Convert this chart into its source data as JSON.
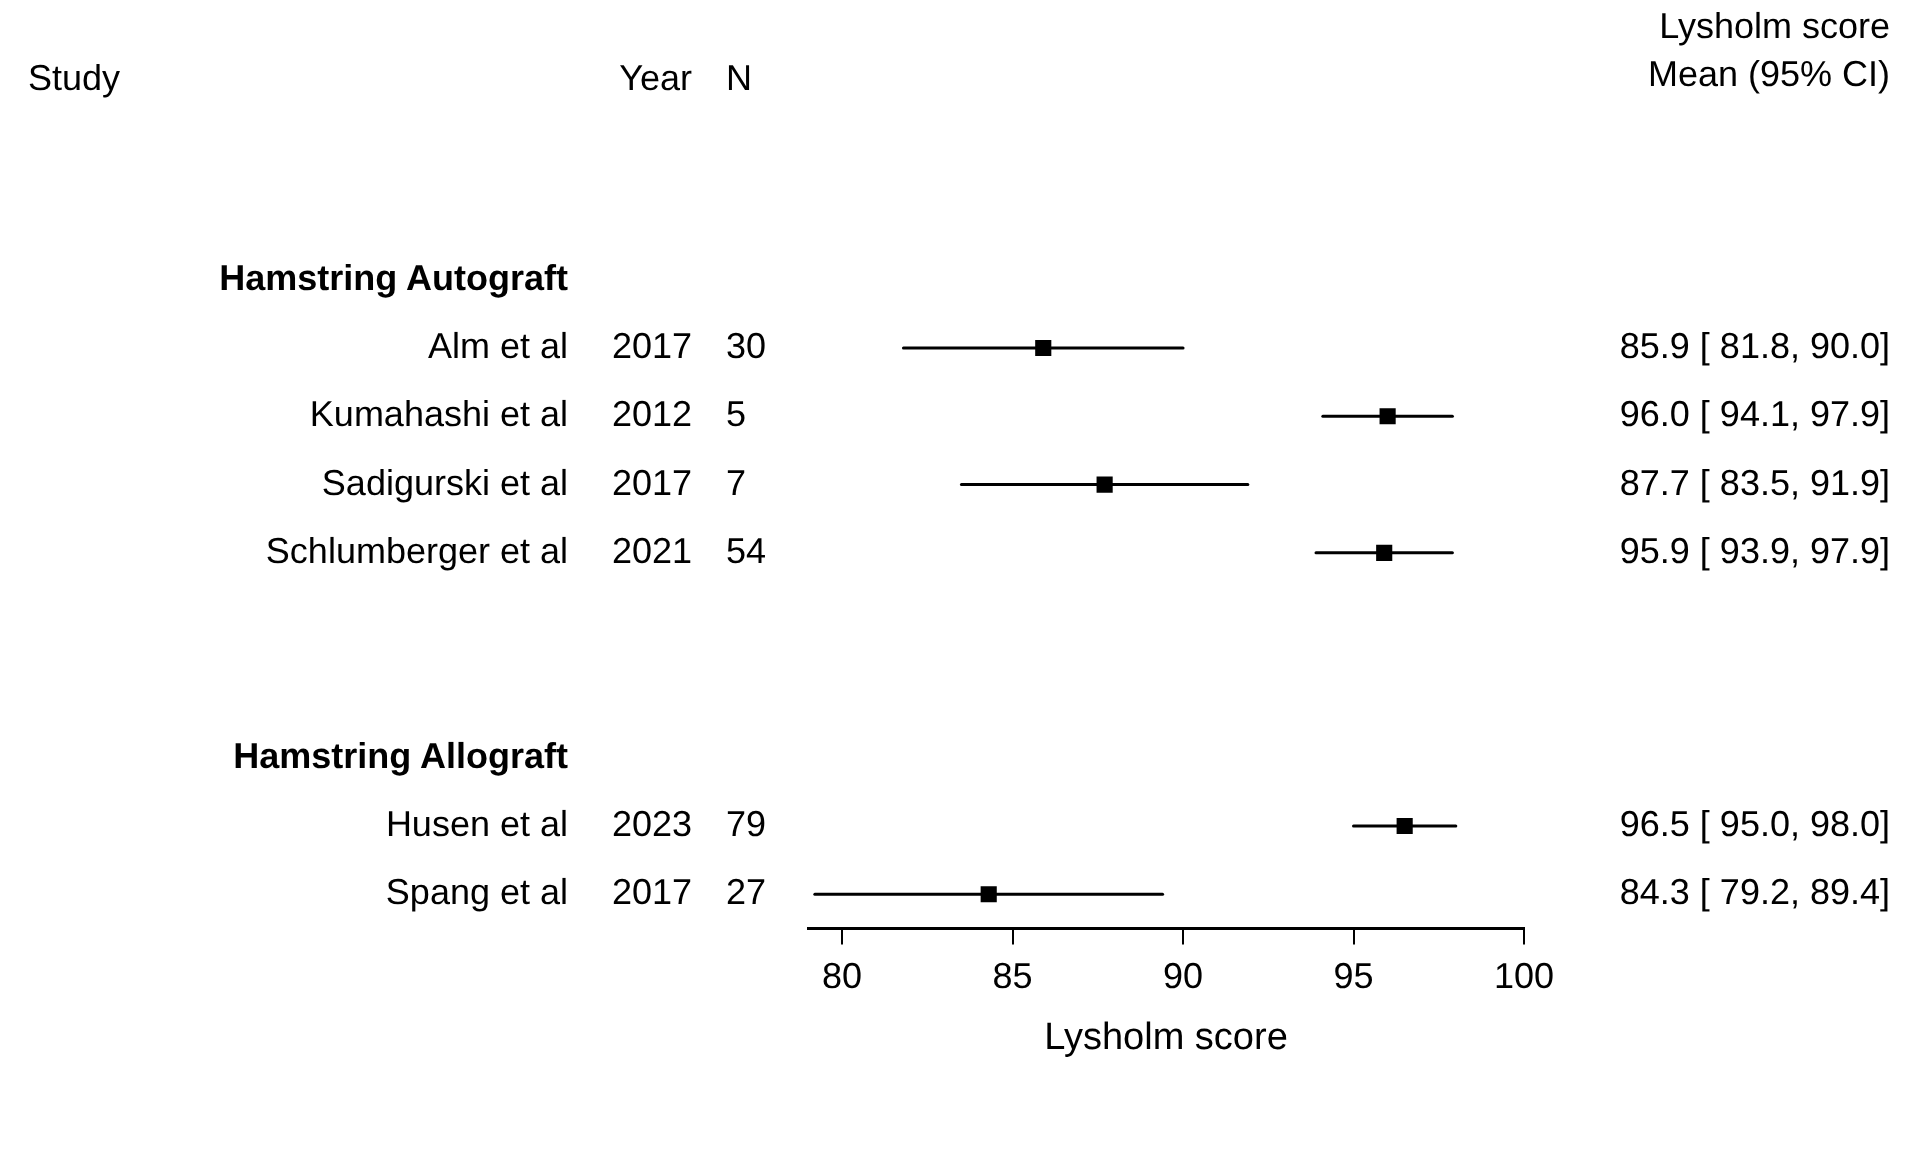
{
  "chart_data": {
    "type": "scatter",
    "orientation": "horizontal",
    "categories": [
      "Hamstring Autograft",
      "Alm et al",
      "Kumahashi et al",
      "Sadigurski et al",
      "Schlumberger et al",
      null,
      null,
      "Hamstring Allograft",
      "Husen et al",
      "Spang et al"
    ],
    "values": [
      null,
      85.9,
      96.0,
      87.7,
      95.9,
      null,
      null,
      null,
      96.5,
      84.3
    ],
    "errors": [
      null,
      [
        81.8,
        90.0
      ],
      [
        94.1,
        97.9
      ],
      [
        83.5,
        91.9
      ],
      [
        93.9,
        97.9
      ],
      null,
      null,
      null,
      [
        95.0,
        98.0
      ],
      [
        79.2,
        89.4
      ]
    ],
    "value_labels": [
      null,
      "85.9 [ 81.8, 90.0]",
      "96.0 [ 94.1, 97.9]",
      "87.7 [ 83.5, 91.9]",
      "95.9 [ 93.9, 97.9]",
      null,
      null,
      null,
      "96.5 [ 95.0, 98.0]",
      "84.3 [ 79.2, 89.4]"
    ],
    "color": "#000000",
    "marker": "square",
    "xlabel": "Lysholm score",
    "xlim": [
      79,
      100
    ],
    "xticks": [
      80,
      85,
      90,
      95,
      100
    ],
    "grid": false,
    "legend": false,
    "annotations": [
      "Study",
      "Year",
      "N",
      "Lysholm score",
      "Mean (95% CI)",
      "2017",
      "30",
      "2012",
      "5",
      "2017",
      "7",
      "2021",
      "54",
      "2023",
      "79",
      "2017",
      "27"
    ]
  }
}
